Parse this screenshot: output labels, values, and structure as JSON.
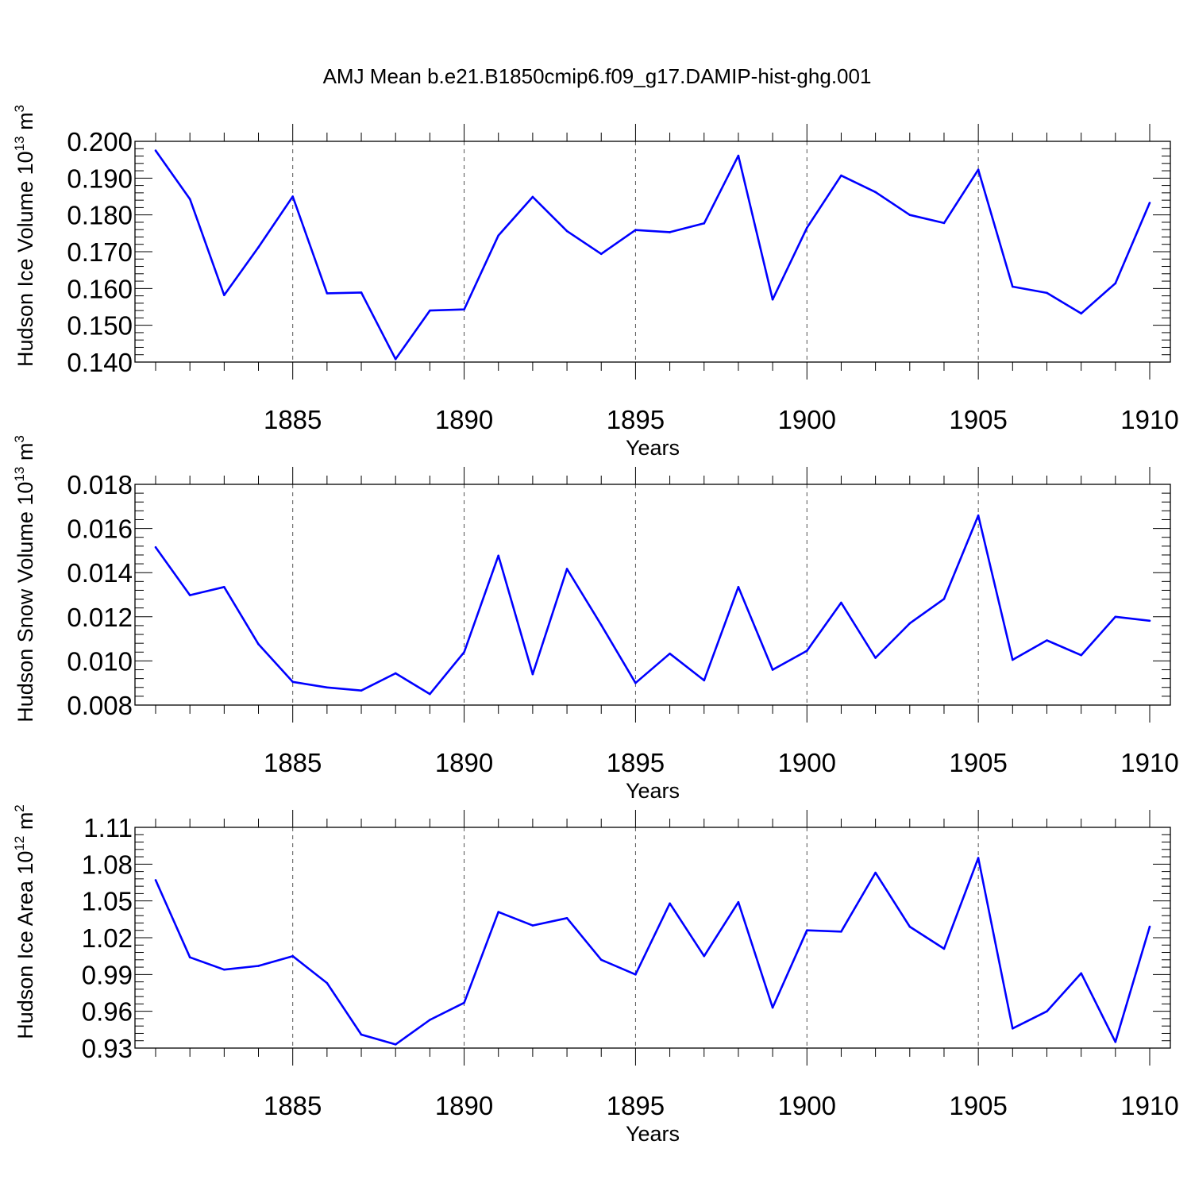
{
  "title": "AMJ Mean b.e21.B1850cmip6.f09_g17.DAMIP-hist-ghg.001",
  "series_color": "#0000ff",
  "chart_data": [
    {
      "type": "line",
      "ylabel": "Hudson Ice Volume 10",
      "ylabel_exp": "13",
      "ylabel_unit": " m",
      "ylabel_unit_exp": "3",
      "xlabel": "Years",
      "xlim": [
        1881,
        1910
      ],
      "ylim": [
        0.14,
        0.2
      ],
      "yticks": [
        0.14,
        0.15,
        0.16,
        0.17,
        0.18,
        0.19,
        0.2
      ],
      "ytick_labels": [
        "0.140",
        "0.150",
        "0.160",
        "0.170",
        "0.180",
        "0.190",
        "0.200"
      ],
      "xticks": [
        1885,
        1890,
        1895,
        1900,
        1905,
        1910
      ],
      "xtick_labels": [
        "1885",
        "1890",
        "1895",
        "1900",
        "1905",
        "1910"
      ],
      "x": [
        1881,
        1882,
        1883,
        1884,
        1885,
        1886,
        1887,
        1888,
        1889,
        1890,
        1891,
        1892,
        1893,
        1894,
        1895,
        1896,
        1897,
        1898,
        1899,
        1900,
        1901,
        1902,
        1903,
        1904,
        1905,
        1906,
        1907,
        1908,
        1909,
        1910
      ],
      "values": [
        0.1975,
        0.1843,
        0.1582,
        0.1712,
        0.185,
        0.1587,
        0.1589,
        0.1408,
        0.154,
        0.1543,
        0.1744,
        0.1849,
        0.1756,
        0.1694,
        0.1759,
        0.1753,
        0.1777,
        0.1961,
        0.157,
        0.1765,
        0.1907,
        0.1862,
        0.18,
        0.1778,
        0.1923,
        0.1605,
        0.1588,
        0.1532,
        0.1614,
        0.1833
      ]
    },
    {
      "type": "line",
      "ylabel": "Hudson Snow Volume 10",
      "ylabel_exp": "13",
      "ylabel_unit": " m",
      "ylabel_unit_exp": "3",
      "xlabel": "Years",
      "xlim": [
        1881,
        1910
      ],
      "ylim": [
        0.008,
        0.018
      ],
      "yticks": [
        0.008,
        0.01,
        0.012,
        0.014,
        0.016,
        0.018
      ],
      "ytick_labels": [
        "0.008",
        "0.010",
        "0.012",
        "0.014",
        "0.016",
        "0.018"
      ],
      "xticks": [
        1885,
        1890,
        1895,
        1900,
        1905,
        1910
      ],
      "xtick_labels": [
        "1885",
        "1890",
        "1895",
        "1900",
        "1905",
        "1910"
      ],
      "x": [
        1881,
        1882,
        1883,
        1884,
        1885,
        1886,
        1887,
        1888,
        1889,
        1890,
        1891,
        1892,
        1893,
        1894,
        1895,
        1896,
        1897,
        1898,
        1899,
        1900,
        1901,
        1902,
        1903,
        1904,
        1905,
        1906,
        1907,
        1908,
        1909,
        1910
      ],
      "values": [
        0.01515,
        0.01298,
        0.01335,
        0.01076,
        0.00905,
        0.0088,
        0.00866,
        0.00944,
        0.0085,
        0.0104,
        0.01477,
        0.0094,
        0.01417,
        0.01163,
        0.009,
        0.01033,
        0.00912,
        0.01335,
        0.0096,
        0.01046,
        0.01264,
        0.01014,
        0.0117,
        0.01281,
        0.01659,
        0.01005,
        0.01093,
        0.01026,
        0.012,
        0.01182
      ]
    },
    {
      "type": "line",
      "ylabel": "Hudson Ice Area 10",
      "ylabel_exp": "12",
      "ylabel_unit": " m",
      "ylabel_unit_exp": "2",
      "xlabel": "Years",
      "xlim": [
        1881,
        1910
      ],
      "ylim": [
        0.93,
        1.11
      ],
      "yticks": [
        0.93,
        0.96,
        0.99,
        1.02,
        1.05,
        1.08,
        1.11
      ],
      "ytick_labels": [
        "0.93",
        "0.96",
        "0.99",
        "1.02",
        "1.05",
        "1.08",
        "1.11"
      ],
      "xticks": [
        1885,
        1890,
        1895,
        1900,
        1905,
        1910
      ],
      "xtick_labels": [
        "1885",
        "1890",
        "1895",
        "1900",
        "1905",
        "1910"
      ],
      "x": [
        1881,
        1882,
        1883,
        1884,
        1885,
        1886,
        1887,
        1888,
        1889,
        1890,
        1891,
        1892,
        1893,
        1894,
        1895,
        1896,
        1897,
        1898,
        1899,
        1900,
        1901,
        1902,
        1903,
        1904,
        1905,
        1906,
        1907,
        1908,
        1909,
        1910
      ],
      "values": [
        1.067,
        1.004,
        0.994,
        0.997,
        1.005,
        0.983,
        0.941,
        0.933,
        0.953,
        0.967,
        1.041,
        1.03,
        1.036,
        1.002,
        0.99,
        1.048,
        1.005,
        1.049,
        0.963,
        1.026,
        1.025,
        1.073,
        1.029,
        1.011,
        1.085,
        0.946,
        0.96,
        0.991,
        0.935,
        1.029
      ]
    }
  ]
}
